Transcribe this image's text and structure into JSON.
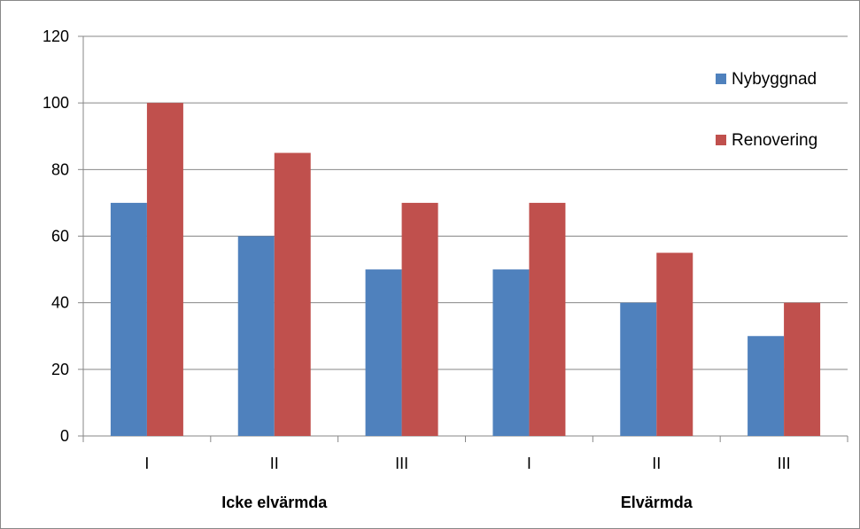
{
  "chart_data": {
    "type": "bar",
    "categories": [
      "I",
      "II",
      "III",
      "I",
      "II",
      "III"
    ],
    "groups": [
      {
        "label": "Icke elvärmda",
        "from": 0,
        "to": 2
      },
      {
        "label": "Elvärmda",
        "from": 3,
        "to": 5
      }
    ],
    "series": [
      {
        "name": "Nybyggnad",
        "color": "#4F81BD",
        "values": [
          70,
          60,
          50,
          50,
          40,
          30
        ]
      },
      {
        "name": "Renovering",
        "color": "#C0504D",
        "values": [
          100,
          85,
          70,
          70,
          55,
          40
        ]
      }
    ],
    "y_ticks": [
      "0",
      "20",
      "40",
      "60",
      "80",
      "100",
      "120"
    ],
    "ylim": [
      0,
      120
    ],
    "grid": true,
    "legend_position": "right"
  }
}
